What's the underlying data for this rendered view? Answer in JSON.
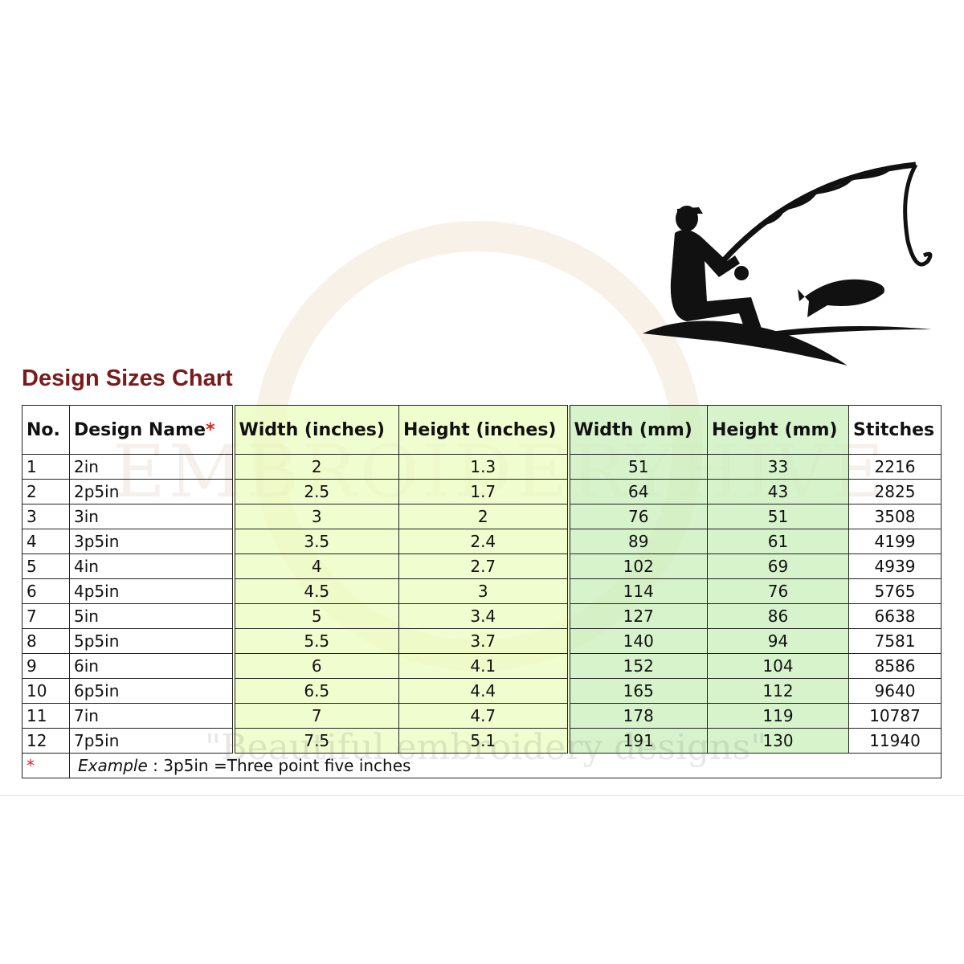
{
  "title": "Design Sizes Chart",
  "watermark": {
    "brand": "EMBROIDERYHIVE",
    "tagline": "\"Beautiful embroidery designs\""
  },
  "colors": {
    "title": "#7a1a1a",
    "inch_columns": "#ebfcbe",
    "mm_columns": "#cdf0be",
    "asterisk": "#e02020"
  },
  "illustration": "fisherman-silhouette-icon",
  "table": {
    "headers": [
      "No.",
      "Design Name",
      "Width (inches)",
      "Height (inches)",
      "Width (mm)",
      "Height (mm)",
      "Stitches"
    ],
    "header_marker": "*",
    "rows": [
      [
        "1",
        "2in",
        "2",
        "1.3",
        "51",
        "33",
        "2216"
      ],
      [
        "2",
        "2p5in",
        "2.5",
        "1.7",
        "64",
        "43",
        "2825"
      ],
      [
        "3",
        "3in",
        "3",
        "2",
        "76",
        "51",
        "3508"
      ],
      [
        "4",
        "3p5in",
        "3.5",
        "2.4",
        "89",
        "61",
        "4199"
      ],
      [
        "5",
        "4in",
        "4",
        "2.7",
        "102",
        "69",
        "4939"
      ],
      [
        "6",
        "4p5in",
        "4.5",
        "3",
        "114",
        "76",
        "5765"
      ],
      [
        "7",
        "5in",
        "5",
        "3.4",
        "127",
        "86",
        "6638"
      ],
      [
        "8",
        "5p5in",
        "5.5",
        "3.7",
        "140",
        "94",
        "7581"
      ],
      [
        "9",
        "6in",
        "6",
        "4.1",
        "152",
        "104",
        "8586"
      ],
      [
        "10",
        "6p5in",
        "6.5",
        "4.4",
        "165",
        "112",
        "9640"
      ],
      [
        "11",
        "7in",
        "7",
        "4.7",
        "178",
        "119",
        "10787"
      ],
      [
        "12",
        "7p5in",
        "7.5",
        "5.1",
        "191",
        "130",
        "11940"
      ]
    ],
    "footnote": {
      "marker": "*",
      "label": "Example",
      "text": " : 3p5in =Three point five inches"
    }
  }
}
